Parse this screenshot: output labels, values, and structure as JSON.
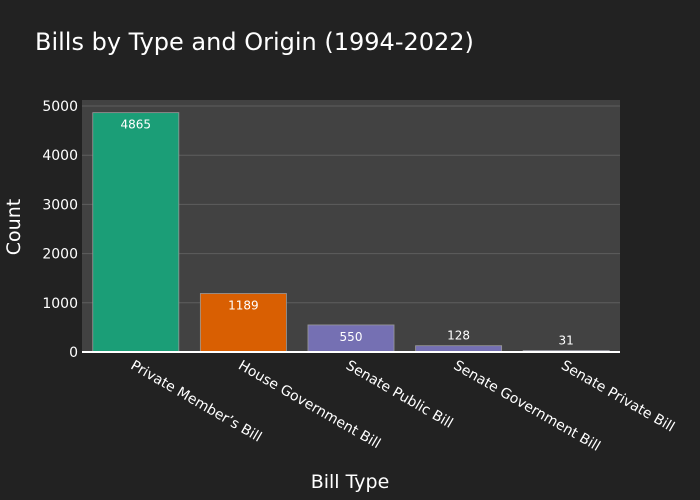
{
  "chart_data": {
    "type": "bar",
    "title": "Bills by Type and Origin (1994-2022)",
    "xlabel": "Bill Type",
    "ylabel": "Count",
    "categories": [
      "Private Member’s Bill",
      "House Government Bill",
      "Senate Public Bill",
      "Senate Government Bill",
      "Senate Private Bill"
    ],
    "values": [
      4865,
      1189,
      550,
      128,
      31
    ],
    "data_labels": [
      "4865",
      "1189",
      "550",
      "128",
      "31"
    ],
    "bar_colors": [
      "#1b9e77",
      "#d95f02",
      "#7570b3",
      "#7570b3",
      "#7570b3"
    ],
    "ylim": [
      0,
      5000
    ],
    "yticks": [
      0,
      1000,
      2000,
      3000,
      4000,
      5000
    ],
    "ytick_labels": [
      "0",
      "1000",
      "2000",
      "3000",
      "4000",
      "5000"
    ],
    "grid": true,
    "colors": {
      "page_bg": "#222222",
      "plot_bg": "#424242",
      "grid": "#5e5e5e",
      "text": "#ffffff"
    }
  }
}
